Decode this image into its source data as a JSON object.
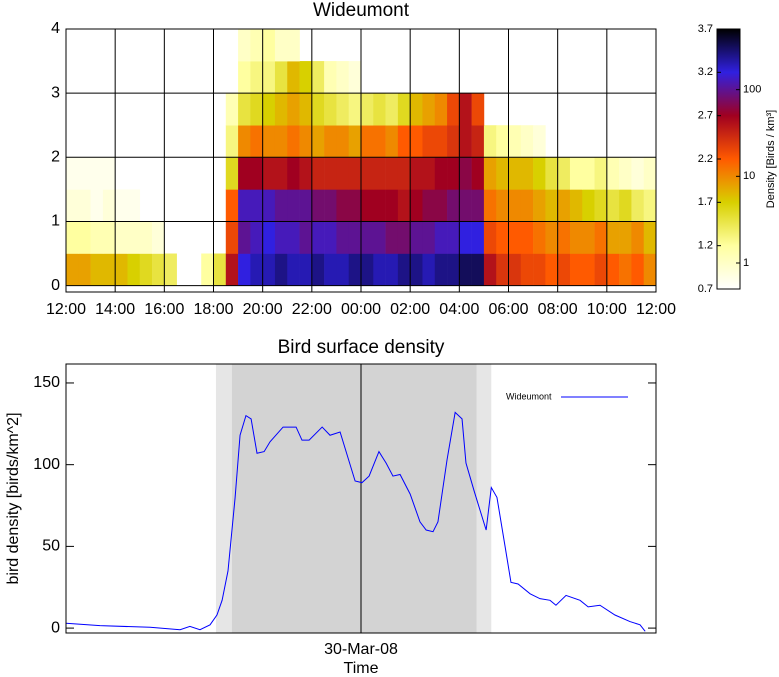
{
  "chart_data": [
    {
      "type": "heatmap",
      "title": "Wideumont",
      "xlim": [
        0,
        24
      ],
      "xticks": [
        {
          "value": 0,
          "label": "12:00"
        },
        {
          "value": 2,
          "label": "14:00"
        },
        {
          "value": 4,
          "label": "16:00"
        },
        {
          "value": 6,
          "label": "18:00"
        },
        {
          "value": 8,
          "label": "20:00"
        },
        {
          "value": 10,
          "label": "22:00"
        },
        {
          "value": 12,
          "label": "00:00"
        },
        {
          "value": 14,
          "label": "02:00"
        },
        {
          "value": 16,
          "label": "04:00"
        },
        {
          "value": 18,
          "label": "06:00"
        },
        {
          "value": 20,
          "label": "08:00"
        },
        {
          "value": 22,
          "label": "10:00"
        },
        {
          "value": 24,
          "label": "12:00"
        }
      ],
      "ylim": [
        -0.1,
        4
      ],
      "yticks": [
        0,
        1,
        2,
        3,
        4
      ],
      "grid": true,
      "xbins": [
        0,
        0.5,
        1,
        1.5,
        2,
        2.5,
        3,
        3.5,
        4,
        4.5,
        5,
        5.5,
        6,
        6.5,
        7,
        7.5,
        8,
        8.5,
        9,
        9.5,
        10,
        10.5,
        11,
        11.5,
        12,
        12.5,
        13,
        13.5,
        14,
        14.5,
        15,
        15.5,
        16,
        16.5,
        17,
        17.5,
        18,
        18.5,
        19,
        19.5,
        20,
        20.5,
        21,
        21.5,
        22,
        22.5,
        23,
        23.5,
        24
      ],
      "ybins": [
        0,
        0.5,
        1,
        1.5,
        2,
        2.5,
        3,
        3.5,
        4
      ],
      "values": [
        [
          1.9,
          1.9,
          1.8,
          1.8,
          1.8,
          1.7,
          1.6,
          1.5,
          1.4,
          null,
          null,
          1.2,
          1.5,
          2.6,
          3.2,
          3.3,
          3.3,
          3.4,
          3.3,
          3.3,
          3.4,
          3.3,
          3.3,
          3.4,
          3.4,
          3.3,
          3.3,
          3.4,
          3.4,
          3.3,
          3.4,
          3.4,
          3.5,
          3.5,
          2.6,
          2.4,
          2.4,
          2.3,
          2.3,
          2.2,
          2.3,
          2.2,
          2.2,
          2.3,
          2.2,
          2.1,
          2.2,
          2.0
        ],
        [
          1.2,
          1.2,
          1.1,
          1.1,
          1.0,
          1.0,
          1.0,
          0.9,
          null,
          null,
          null,
          null,
          null,
          2.3,
          3.0,
          3.1,
          3.2,
          3.1,
          3.1,
          3.0,
          3.1,
          3.1,
          3.0,
          3.0,
          3.0,
          3.0,
          2.9,
          2.9,
          3.0,
          3.0,
          3.1,
          3.1,
          3.2,
          3.2,
          2.3,
          2.2,
          2.2,
          2.2,
          2.1,
          2.0,
          2.1,
          2.0,
          2.0,
          2.1,
          1.9,
          1.9,
          2.0,
          1.8
        ],
        [
          0.9,
          0.9,
          0.8,
          0.9,
          0.8,
          0.8,
          null,
          null,
          null,
          null,
          null,
          null,
          null,
          2.2,
          3.1,
          3.1,
          3.1,
          3.0,
          3.0,
          3.0,
          2.9,
          2.9,
          2.8,
          2.8,
          2.7,
          2.7,
          2.7,
          2.6,
          2.7,
          2.8,
          2.8,
          2.9,
          2.9,
          2.9,
          2.1,
          2.0,
          2.0,
          2.0,
          1.9,
          1.8,
          1.9,
          1.8,
          1.7,
          1.6,
          1.5,
          1.6,
          1.4,
          1.3
        ],
        [
          0.8,
          0.8,
          0.8,
          0.8,
          null,
          null,
          null,
          null,
          null,
          null,
          null,
          null,
          null,
          1.6,
          2.7,
          2.7,
          2.6,
          2.6,
          2.7,
          2.6,
          2.5,
          2.5,
          2.5,
          2.5,
          2.5,
          2.5,
          2.5,
          2.5,
          2.6,
          2.6,
          2.7,
          2.7,
          2.8,
          2.7,
          1.9,
          1.8,
          1.8,
          1.8,
          1.7,
          1.5,
          1.4,
          1.2,
          1.2,
          1.3,
          1.1,
          1.0,
          0.9,
          1.0
        ],
        [
          null,
          null,
          null,
          null,
          null,
          null,
          null,
          null,
          null,
          null,
          null,
          null,
          null,
          1.3,
          2.0,
          2.1,
          2.0,
          2.0,
          2.1,
          2.0,
          1.9,
          2.0,
          2.0,
          1.9,
          2.1,
          2.1,
          2.0,
          2.2,
          2.2,
          2.3,
          2.3,
          2.4,
          2.6,
          2.5,
          1.3,
          1.2,
          1.1,
          1.0,
          0.9,
          null,
          null,
          null,
          null,
          null,
          null,
          null,
          null,
          null
        ],
        [
          null,
          null,
          null,
          null,
          null,
          null,
          null,
          null,
          null,
          null,
          null,
          null,
          null,
          1.1,
          1.5,
          1.6,
          1.7,
          1.8,
          1.9,
          1.8,
          1.6,
          1.5,
          1.4,
          1.3,
          1.4,
          1.5,
          1.4,
          1.6,
          1.8,
          1.9,
          2.0,
          2.3,
          2.6,
          2.3,
          null,
          null,
          null,
          null,
          null,
          null,
          null,
          null,
          null,
          null,
          null,
          null,
          null,
          null
        ],
        [
          null,
          null,
          null,
          null,
          null,
          null,
          null,
          null,
          null,
          null,
          null,
          null,
          null,
          null,
          1.2,
          1.3,
          1.3,
          1.5,
          1.8,
          1.7,
          1.4,
          1.1,
          1.0,
          0.9,
          null,
          null,
          null,
          null,
          null,
          null,
          null,
          null,
          null,
          null,
          null,
          null,
          null,
          null,
          null,
          null,
          null,
          null,
          null,
          null,
          null,
          null,
          null,
          null
        ],
        [
          null,
          null,
          null,
          null,
          null,
          null,
          null,
          null,
          null,
          null,
          null,
          null,
          null,
          null,
          1.0,
          1.1,
          1.2,
          1.0,
          1.0,
          null,
          null,
          null,
          null,
          null,
          null,
          null,
          null,
          null,
          null,
          null,
          null,
          null,
          null,
          null,
          null,
          null,
          null,
          null,
          null,
          null,
          null,
          null,
          null,
          null,
          null,
          null,
          null,
          null
        ]
      ],
      "colorbar": {
        "label": "Density [Birds / km³]",
        "zlim": [
          0.7,
          3.7
        ],
        "zticks": [
          0.7,
          1.2,
          1.7,
          2.2,
          2.7,
          3.2,
          3.7
        ],
        "zticks2": [
          {
            "value": 1,
            "label": "1"
          },
          {
            "value": 2,
            "label": "10"
          },
          {
            "value": 3,
            "label": "100"
          }
        ],
        "colors": [
          "#ffffff",
          "#ffffa0",
          "#d8d000",
          "#ff5a00",
          "#a00020",
          "#3020e0",
          "#000000"
        ]
      }
    },
    {
      "type": "line",
      "title": "Bird surface density",
      "xlabel": "Time",
      "ylabel": "bird density [birds/km^2]",
      "xlim": [
        0,
        24
      ],
      "xticks": [
        {
          "value": 12,
          "label": "30-Mar-08"
        }
      ],
      "ylim": [
        -3,
        161.6
      ],
      "yticks": [
        0,
        50,
        100,
        150
      ],
      "shading": [
        {
          "from": 6.1,
          "to": 17.3,
          "color": "#e6e6e6"
        },
        {
          "from": 6.75,
          "to": 16.7,
          "color": "#d3d3d3"
        }
      ],
      "vlines": [
        12
      ],
      "legend": "upper right",
      "series": [
        {
          "name": "Wideumont",
          "color": "#0000ff",
          "x": [
            0,
            1.38,
            3.42,
            4.64,
            5.04,
            5.45,
            5.86,
            6.14,
            6.35,
            6.59,
            6.88,
            7.08,
            7.32,
            7.53,
            7.77,
            8.06,
            8.3,
            8.83,
            9.36,
            9.6,
            9.89,
            10.42,
            10.74,
            11.15,
            11.76,
            12.04,
            12.33,
            12.73,
            13.02,
            13.3,
            13.59,
            14.0,
            14.4,
            14.65,
            14.93,
            15.13,
            15.5,
            15.83,
            16.11,
            16.27,
            16.6,
            17.09,
            17.3,
            17.53,
            17.86,
            18.1,
            18.39,
            18.88,
            19.28,
            19.69,
            19.93,
            20.34,
            20.91,
            21.24,
            21.72,
            22.33,
            22.94,
            23.35,
            23.56
          ],
          "values": [
            3,
            1.5,
            0.5,
            -1,
            1,
            -1,
            2,
            8,
            17,
            35,
            80,
            118,
            130,
            128,
            107,
            108,
            114,
            123,
            123,
            115,
            115,
            123,
            118,
            120,
            90,
            89,
            93,
            108,
            101,
            93,
            94,
            82,
            65,
            60,
            59,
            65,
            103,
            132,
            128,
            101,
            84,
            60,
            86,
            80,
            50,
            28,
            27,
            21,
            18,
            17,
            14,
            20,
            17,
            13,
            14,
            8,
            4,
            2,
            -2
          ]
        }
      ]
    }
  ]
}
